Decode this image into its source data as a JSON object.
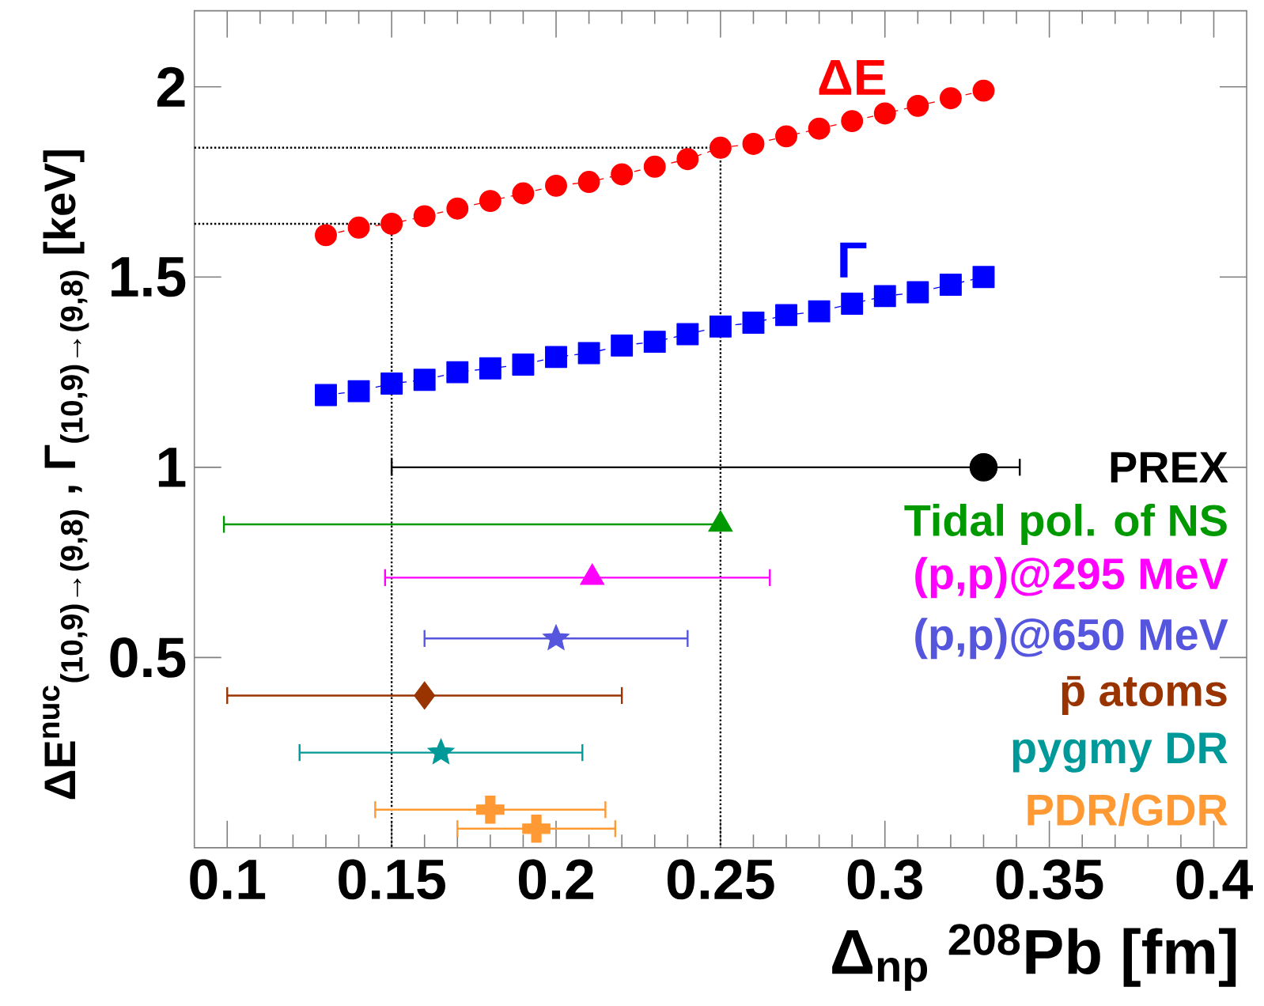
{
  "chart_data": {
    "type": "scatter",
    "xlabel": "Δ$_{np}$  $^{208}$Pb [fm]",
    "ylabel": "ΔE$^{nuc}$$_{(10,9)→(9,8)}$  ,  Γ$_{(10,9)→(9,8)}$ [keV]",
    "xlim": [
      0.09,
      0.41
    ],
    "ylim": [
      0,
      2.2
    ],
    "xticks": [
      0.1,
      0.15,
      0.2,
      0.25,
      0.3,
      0.35,
      0.4
    ],
    "yticks": [
      0.5,
      1,
      1.5,
      2
    ],
    "grid": false,
    "legend": "right",
    "series": [
      {
        "name": "ΔE",
        "type": "line",
        "color": "#ff0000",
        "marker": "circle",
        "line_style": "dashed",
        "x": [
          0.13,
          0.14,
          0.15,
          0.16,
          0.17,
          0.18,
          0.19,
          0.2,
          0.21,
          0.22,
          0.23,
          0.24,
          0.25,
          0.26,
          0.27,
          0.28,
          0.29,
          0.3,
          0.31,
          0.32,
          0.33
        ],
        "values": [
          1.61,
          1.63,
          1.64,
          1.66,
          1.68,
          1.7,
          1.72,
          1.74,
          1.75,
          1.77,
          1.79,
          1.81,
          1.84,
          1.85,
          1.87,
          1.89,
          1.91,
          1.93,
          1.95,
          1.97,
          1.99
        ]
      },
      {
        "name": "Γ",
        "type": "line",
        "color": "#0000ff",
        "marker": "square",
        "line_style": "dashed",
        "x": [
          0.13,
          0.14,
          0.15,
          0.16,
          0.17,
          0.18,
          0.19,
          0.2,
          0.21,
          0.22,
          0.23,
          0.24,
          0.25,
          0.26,
          0.27,
          0.28,
          0.29,
          0.3,
          0.31,
          0.32,
          0.33
        ],
        "values": [
          1.19,
          1.2,
          1.22,
          1.23,
          1.25,
          1.26,
          1.27,
          1.29,
          1.3,
          1.32,
          1.33,
          1.35,
          1.37,
          1.38,
          1.4,
          1.41,
          1.43,
          1.45,
          1.46,
          1.48,
          1.5
        ]
      },
      {
        "type": "line",
        "color": "#000000",
        "marker": "none",
        "line_style": "dotted",
        "x": [
          0.09,
          0.15,
          0.15
        ],
        "values": [
          1.64,
          1.64,
          0
        ]
      },
      {
        "type": "line",
        "color": "#000000",
        "marker": "none",
        "line_style": "dotted",
        "x": [
          0.09,
          0.25,
          0.25
        ],
        "values": [
          1.84,
          1.84,
          0
        ]
      },
      {
        "name": "PREX",
        "color": "#000000",
        "marker": "circle",
        "x": [
          0.33
        ],
        "values": [
          1.0
        ],
        "xerrors": [
          [
            0.15,
            0.341
          ]
        ]
      },
      {
        "name": "Tidal pol. of NS",
        "color": "#009900",
        "marker": "triangle",
        "x": [
          0.25
        ],
        "values": [
          0.85
        ],
        "xerrors": [
          [
            0.099,
            0.25
          ]
        ]
      },
      {
        "name": "(p,p)@295 MeV",
        "color": "#ff00ff",
        "marker": "triangle",
        "x": [
          0.211
        ],
        "values": [
          0.71
        ],
        "xerrors": [
          [
            0.148,
            0.265
          ]
        ]
      },
      {
        "name": "(p,p)@650 MeV",
        "color": "#5555dd",
        "marker": "star",
        "x": [
          0.2
        ],
        "values": [
          0.55
        ],
        "xerrors": [
          [
            0.16,
            0.24
          ]
        ]
      },
      {
        "name": "p̄ atoms",
        "color": "#993300",
        "marker": "diamond",
        "x": [
          0.16
        ],
        "values": [
          0.4
        ],
        "xerrors": [
          [
            0.1,
            0.22
          ]
        ]
      },
      {
        "name": "pygmy DR",
        "color": "#009999",
        "marker": "star",
        "x": [
          0.165
        ],
        "values": [
          0.25
        ],
        "xerrors": [
          0.043
        ]
      },
      {
        "name": "PDR/GDR",
        "color": "#ff9933",
        "marker": "cross",
        "x": [
          0.18
        ],
        "values": [
          0.1
        ],
        "xerrors": [
          [
            0.145,
            0.215
          ]
        ]
      },
      {
        "color": "#ff9933",
        "marker": "cross",
        "x": [
          0.194
        ],
        "values": [
          0.05
        ],
        "xerrors": [
          [
            0.17,
            0.218
          ]
        ]
      }
    ]
  }
}
